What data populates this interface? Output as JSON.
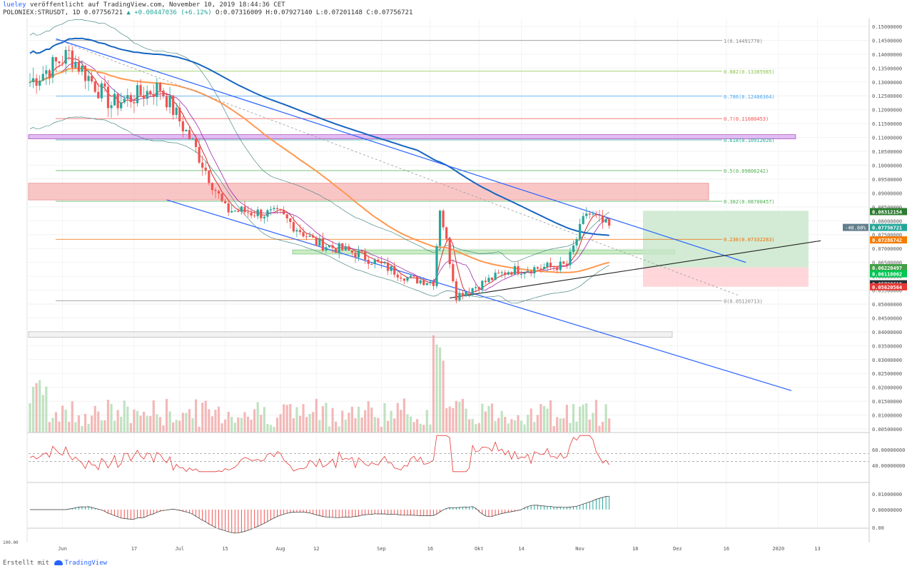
{
  "header": {
    "user": "lueley",
    "published": "veröffentlicht auf TradingView.com, November 10, 2019 18:44:36 CET",
    "symbol_line": "POLONIEX:STRUSDT, 1D",
    "last": "0.07756721",
    "change_arrow": "▲",
    "change": "+0.00447036 (+6.12%)",
    "ohlc": "O:0.07316009 H:0.07927140 L:0.07201148 C:0.07756721"
  },
  "footer": {
    "prefix": "Erstellt mit",
    "brand": "TradingView"
  },
  "colors": {
    "up": "#26a69a",
    "down": "#ef5350",
    "channel": "#2962ff",
    "ema200": "#1565c0",
    "ema_orange": "#ff9850",
    "fib_gray": "#888888",
    "green_zone": "#b9e6b2",
    "red_zone": "#f7b3b3",
    "purple_zone": "#d7a7ef"
  },
  "price_axis_labels": [
    "0.15000000",
    "0.14500000",
    "0.14000000",
    "0.13500000",
    "0.13000000",
    "0.12500000",
    "0.12000000",
    "0.11500000",
    "0.11000000",
    "0.10500000",
    "0.10000000",
    "0.09500000",
    "0.09000000",
    "0.08500000",
    "0.08000000",
    "0.07500000",
    "0.07000000",
    "0.06500000",
    "0.06000000",
    "0.05500000",
    "0.05000000",
    "0.04500000",
    "0.04000000",
    "0.03500000",
    "0.03000000",
    "0.02500000",
    "0.02000000",
    "0.01500000",
    "0.01000000",
    "0.00500000"
  ],
  "price_tags": [
    {
      "text": "0.08312154",
      "bg": "#2e7d32"
    },
    {
      "text": "0.07756721",
      "bg": "#26a69a",
      "change": "-40.88%"
    },
    {
      "text": "0.07286742",
      "bg": "#f57c00"
    },
    {
      "text": "0.06220497",
      "bg": "#43a047"
    },
    {
      "text": "0.06118062",
      "bg": "#00c853"
    },
    {
      "text": "0.05728619",
      "bg": "#263238"
    },
    {
      "text": "0.05620564",
      "bg": "#e53935"
    }
  ],
  "fib_levels": [
    {
      "label": "1(0.14491770)",
      "value": 0.1449177,
      "color": "#888888"
    },
    {
      "label": "0.882(0.13385985)",
      "value": 0.13385985,
      "color": "#8bc34a"
    },
    {
      "label": "0.786(0.12486364)",
      "value": 0.12486364,
      "color": "#42a5f5"
    },
    {
      "label": "0.7(0.11680453)",
      "value": 0.11680453,
      "color": "#ef5350"
    },
    {
      "label": "0.618(0.10912026)",
      "value": 0.10912026,
      "color": "#26a69a"
    },
    {
      "label": "0.5(0.09806242)",
      "value": 0.09806242,
      "color": "#4caf50"
    },
    {
      "label": "0.382(0.08700457)",
      "value": 0.08700457,
      "color": "#4caf50"
    },
    {
      "label": "0.236(0.07332283)",
      "value": 0.07332283,
      "color": "#ef6c00"
    },
    {
      "label": "0(0.05120713)",
      "value": 0.05120713,
      "color": "#888888"
    }
  ],
  "x_axis_labels": [
    "Jun",
    "17",
    "Jul",
    "15",
    "Aug",
    "12",
    "Sep",
    "16",
    "Okt",
    "14",
    "Nov",
    "18",
    "Dez",
    "16",
    "2020",
    "13"
  ],
  "rsi": {
    "axis_labels": [
      "60.00000000",
      "40.00000000"
    ],
    "bottom_label": "100.00"
  },
  "macd": {
    "axis_labels": [
      "0.01000000",
      "0.00000000"
    ],
    "bottom_label": "0.00"
  },
  "chart_data": {
    "type": "candlestick",
    "symbol": "POLONIEX:STRUSDT",
    "interval": "1D",
    "ylim": [
      0.003,
      0.153
    ],
    "candles_anchor": [
      {
        "x": "2019-05-16",
        "close": 0.13
      },
      {
        "x": "2019-05-28",
        "close": 0.14
      },
      {
        "x": "2019-06-10",
        "close": 0.122
      },
      {
        "x": "2019-06-25",
        "close": 0.128
      },
      {
        "x": "2019-07-05",
        "close": 0.108
      },
      {
        "x": "2019-07-15",
        "close": 0.084
      },
      {
        "x": "2019-08-01",
        "close": 0.082
      },
      {
        "x": "2019-08-12",
        "close": 0.072
      },
      {
        "x": "2019-08-25",
        "close": 0.068
      },
      {
        "x": "2019-09-10",
        "close": 0.059
      },
      {
        "x": "2019-09-17",
        "close": 0.058
      },
      {
        "x": "2019-09-19",
        "close": 0.085
      },
      {
        "x": "2019-09-24",
        "close": 0.053
      },
      {
        "x": "2019-10-10",
        "close": 0.062
      },
      {
        "x": "2019-10-28",
        "close": 0.064
      },
      {
        "x": "2019-11-03",
        "close": 0.083
      },
      {
        "x": "2019-11-10",
        "close": 0.0776
      }
    ],
    "zones": [
      {
        "name": "purple",
        "from": 0.1095,
        "to": 0.111
      },
      {
        "name": "red",
        "from": 0.0875,
        "to": 0.0935
      },
      {
        "name": "green",
        "from": 0.068,
        "to": 0.0695
      },
      {
        "name": "gray",
        "from": 0.038,
        "to": 0.04
      }
    ]
  }
}
